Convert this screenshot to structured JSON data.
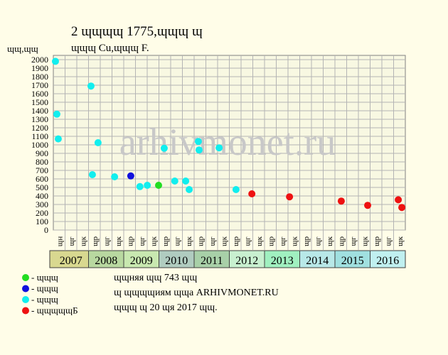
{
  "chart_data": {
    "type": "scatter",
    "title": "2 ɰɰɰɰ 1775,ɰɰɰ ɰ",
    "subtitle": "ɰɰɰ Cu,ɰɰɰ F.",
    "y_label": "ɰɰ,ɰɰ",
    "watermark": "arhivmonet.ru",
    "notes": [
      "ɰɰняя ɰɰ 743 ɰɰ",
      "ɰ ɰɰɰɰиям ɰɰа ARHIVMONET.RU",
      "ɰɰɰ ɰ 20 ɰя 2017 ɰɰ."
    ],
    "years": [
      "2007",
      "2008",
      "2009",
      "2010",
      "2011",
      "2012",
      "2013",
      "2014",
      "2015",
      "2016"
    ],
    "year_colors": [
      "#d8d890",
      "#b8d8a0",
      "#c8e8b0",
      "#b0ccc0",
      "#a8d0a8",
      "#c8f0d0",
      "#a0f0c0",
      "#b8e8e8",
      "#a0e0e0",
      "#c0f0f0"
    ],
    "columns": [
      "ɰн",
      "ɰг",
      "ɰк",
      "ɰр",
      "ɰг",
      "ɰк",
      "ɰр",
      "ɰг",
      "ɰк",
      "ɰр",
      "ɰг",
      "ɰк",
      "ɰр",
      "ɰг",
      "ɰк",
      "ɰр",
      "ɰг",
      "ɰк",
      "ɰр",
      "ɰг",
      "ɰк",
      "ɰр",
      "ɰг",
      "ɰк",
      "ɰр",
      "ɰг",
      "ɰк",
      "ɰр",
      "ɰг",
      "ɰк"
    ],
    "xlim": [
      2007,
      2017
    ],
    "ylim": [
      0,
      2000
    ],
    "yticks": [
      0,
      100,
      200,
      300,
      400,
      500,
      600,
      700,
      800,
      900,
      1000,
      1100,
      1200,
      1300,
      1400,
      1500,
      1600,
      1700,
      1800,
      1900,
      2000
    ],
    "grid": true,
    "series": [
      {
        "name": "- ɰɰɰ",
        "color": "#22dd22",
        "x": [
          2009.99
        ],
        "values": [
          525
        ]
      },
      {
        "name": "- ɰɰɰ",
        "color": "#1010dd",
        "x": [
          2009.2
        ],
        "values": [
          635
        ]
      },
      {
        "name": "- ɰɰɰ",
        "color": "#11eeee",
        "x": [
          2007.06,
          2007.1,
          2007.14,
          2008.07,
          2008.11,
          2008.27,
          2008.74,
          2009.46,
          2009.67,
          2010.15,
          2010.45,
          2010.76,
          2010.86,
          2011.12,
          2011.14,
          2011.71,
          2012.19
        ],
        "values": [
          1980,
          1360,
          1070,
          1690,
          650,
          1025,
          625,
          510,
          525,
          960,
          575,
          575,
          475,
          1040,
          940,
          965,
          475
        ]
      },
      {
        "name": "- ɰɰɰɰɰБ",
        "color": "#ee1111",
        "x": [
          2012.64,
          2013.71,
          2015.18,
          2015.93,
          2016.8,
          2016.9
        ],
        "values": [
          425,
          390,
          340,
          290,
          355,
          265
        ]
      }
    ]
  }
}
